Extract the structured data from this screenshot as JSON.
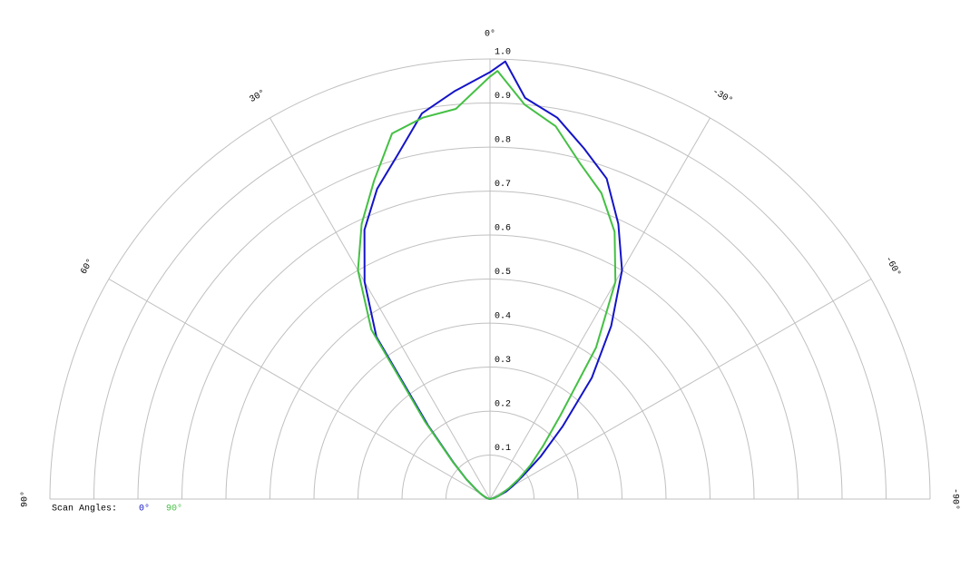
{
  "chart_data": {
    "type": "polar",
    "rlim": [
      0,
      1
    ],
    "rticks": [
      0.1,
      0.2,
      0.3,
      0.4,
      0.5,
      0.6,
      0.7,
      0.8,
      0.9,
      {
        "value": 1,
        "label": "1.0"
      }
    ],
    "thetalim": [
      -90,
      90
    ],
    "thetaticks": [
      {
        "value": 90,
        "label": "90°"
      },
      {
        "value": 60,
        "label": "60°"
      },
      {
        "value": 30,
        "label": "30°"
      },
      {
        "value": 0,
        "label": "0°"
      },
      {
        "value": -30,
        "label": "-30°"
      },
      {
        "value": -60,
        "label": "-60°"
      },
      {
        "value": -90,
        "label": "-90°"
      }
    ],
    "legend_title": "Scan Angles:",
    "series": [
      {
        "name": "0°",
        "color": "#1414c8",
        "x": [
          -90,
          -85,
          -80,
          -75,
          -70,
          -65,
          -60,
          -55,
          -50,
          -45,
          -40,
          -35,
          -30,
          -25,
          -20,
          -15,
          -10,
          -5,
          -2,
          0,
          5,
          10,
          15,
          20,
          25,
          30,
          35,
          40,
          45,
          50,
          55,
          60,
          65,
          70,
          75,
          80,
          85,
          90
        ],
        "values": [
          0,
          0,
          0,
          0.01,
          0.02,
          0.04,
          0.06,
          0.09,
          0.15,
          0.233,
          0.36,
          0.48,
          0.6,
          0.69,
          0.775,
          0.825,
          0.88,
          0.915,
          0.995,
          0.97,
          0.93,
          0.89,
          0.81,
          0.75,
          0.675,
          0.57,
          0.45,
          0.22,
          0.117,
          0.07,
          0.04,
          0.025,
          0.015,
          0.01,
          0.005,
          0,
          0,
          0
        ]
      },
      {
        "name": "90°",
        "color": "#44c044",
        "x": [
          -90,
          -85,
          -80,
          -75,
          -70,
          -65,
          -60,
          -55,
          -50,
          -45,
          -40,
          -35,
          -30,
          -25,
          -20,
          -15,
          -10,
          -5,
          -1,
          0,
          5,
          10,
          15,
          20,
          25,
          30,
          35,
          40,
          45,
          50,
          55,
          60,
          65,
          70,
          75,
          80,
          85,
          90
        ],
        "values": [
          0,
          0,
          0,
          0.01,
          0.02,
          0.03,
          0.05,
          0.08,
          0.12,
          0.17,
          0.25,
          0.42,
          0.57,
          0.67,
          0.74,
          0.79,
          0.86,
          0.9,
          0.973,
          0.96,
          0.89,
          0.88,
          0.86,
          0.77,
          0.69,
          0.6,
          0.47,
          0.23,
          0.12,
          0.07,
          0.04,
          0.025,
          0.015,
          0.01,
          0.005,
          0,
          0,
          0
        ]
      }
    ]
  }
}
